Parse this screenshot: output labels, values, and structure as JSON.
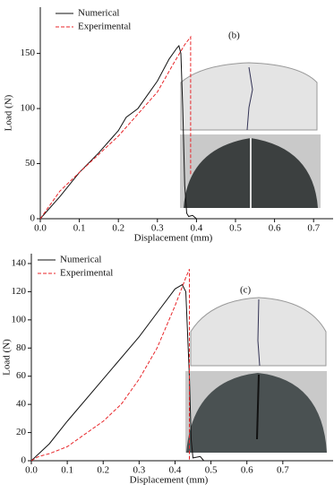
{
  "chart_data": [
    {
      "type": "line",
      "annotation": "(b)",
      "xlabel": "Displacement (mm)",
      "ylabel": "Load (N)",
      "xlim": [
        0,
        0.75
      ],
      "ylim": [
        0,
        192
      ],
      "xticks": [
        {
          "value": 0,
          "label": "0.0"
        },
        0.1,
        0.2,
        0.3,
        0.4,
        0.5,
        0.6,
        0.7
      ],
      "yticks": [
        0,
        50,
        100,
        150
      ],
      "legend": "upper left",
      "series": [
        {
          "name": "Numerical",
          "color": "#111111",
          "linestyle": "solid",
          "x": [
            0,
            0.05,
            0.1,
            0.15,
            0.2,
            0.22,
            0.25,
            0.3,
            0.33,
            0.35,
            0.355,
            0.36,
            0.365,
            0.37,
            0.375,
            0.38,
            0.39,
            0.4
          ],
          "values": [
            0,
            20,
            42,
            60,
            80,
            92,
            100,
            125,
            145,
            155,
            157,
            150,
            100,
            30,
            5,
            2,
            3,
            0
          ]
        },
        {
          "name": "Experimental",
          "color": "#e8262a",
          "linestyle": "dashed",
          "x": [
            0,
            0.05,
            0.1,
            0.2,
            0.3,
            0.34,
            0.37,
            0.385,
            0.385
          ],
          "values": [
            0,
            25,
            42,
            75,
            115,
            140,
            158,
            165,
            40
          ]
        }
      ]
    },
    {
      "type": "line",
      "annotation": "(c)",
      "xlabel": "Displacement (mm)",
      "ylabel": "Load (N)",
      "xlim": [
        0,
        0.84
      ],
      "ylim": [
        0,
        147
      ],
      "xticks": [
        {
          "value": 0,
          "label": "0.0"
        },
        0.1,
        0.2,
        0.3,
        0.4,
        0.5,
        0.6,
        0.7
      ],
      "yticks": [
        0,
        20,
        40,
        60,
        80,
        100,
        120,
        140
      ],
      "legend": "upper left",
      "series": [
        {
          "name": "Numerical",
          "color": "#111111",
          "linestyle": "solid",
          "x": [
            0,
            0.05,
            0.1,
            0.2,
            0.3,
            0.35,
            0.4,
            0.42,
            0.43,
            0.44,
            0.445,
            0.45,
            0.47,
            0.48
          ],
          "values": [
            0,
            12,
            28,
            58,
            88,
            105,
            122,
            125,
            120,
            60,
            15,
            2,
            3,
            0
          ]
        },
        {
          "name": "Experimental",
          "color": "#e8262a",
          "linestyle": "dashed",
          "x": [
            0,
            0.02,
            0.05,
            0.1,
            0.2,
            0.25,
            0.3,
            0.35,
            0.4,
            0.43,
            0.44,
            0.44
          ],
          "values": [
            0,
            3,
            5,
            10,
            28,
            40,
            58,
            80,
            110,
            130,
            136,
            0
          ]
        }
      ]
    }
  ]
}
